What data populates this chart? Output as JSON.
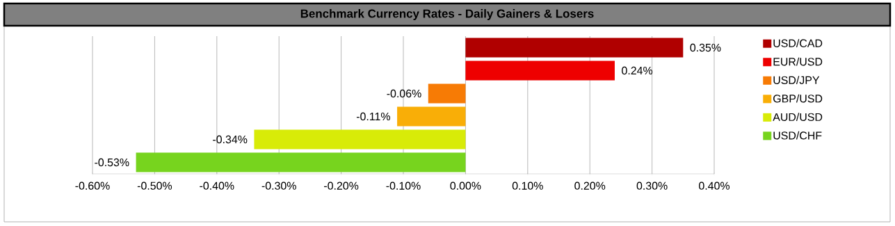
{
  "chart_data": {
    "type": "bar",
    "orientation": "horizontal",
    "title": "Benchmark Currency Rates - Daily Gainers & Losers",
    "categories": [
      null,
      null,
      null,
      null,
      null,
      null
    ],
    "series": [
      {
        "name": "USD/CAD",
        "color": "#b00000",
        "values": [
          0.35,
          null,
          null,
          null,
          null,
          null
        ],
        "value_labels": [
          "0.35%",
          null,
          null,
          null,
          null,
          null
        ]
      },
      {
        "name": "EUR/USD",
        "color": "#ee0000",
        "values": [
          null,
          0.24,
          null,
          null,
          null,
          null
        ],
        "value_labels": [
          null,
          "0.24%",
          null,
          null,
          null,
          null
        ]
      },
      {
        "name": "USD/JPY",
        "color": "#f77b05",
        "values": [
          null,
          null,
          -0.06,
          null,
          null,
          null
        ],
        "value_labels": [
          null,
          null,
          "-0.06%",
          null,
          null,
          null
        ]
      },
      {
        "name": "GBP/USD",
        "color": "#f9ae07",
        "values": [
          null,
          null,
          null,
          -0.11,
          null,
          null
        ],
        "value_labels": [
          null,
          null,
          null,
          "-0.11%",
          null,
          null
        ]
      },
      {
        "name": "AUD/USD",
        "color": "#d8eb08",
        "values": [
          null,
          null,
          null,
          null,
          -0.34,
          null
        ],
        "value_labels": [
          null,
          null,
          null,
          null,
          "-0.34%",
          null
        ]
      },
      {
        "name": "USD/CHF",
        "color": "#77d41e",
        "values": [
          null,
          null,
          null,
          null,
          null,
          -0.53
        ],
        "value_labels": [
          null,
          null,
          null,
          null,
          null,
          "-0.53%"
        ]
      }
    ],
    "xlim": [
      -0.6,
      0.4
    ],
    "xticks": [
      {
        "value": -0.6,
        "label": "-0.60%"
      },
      {
        "value": -0.5,
        "label": "-0.50%"
      },
      {
        "value": -0.4,
        "label": "-0.40%"
      },
      {
        "value": -0.3,
        "label": "-0.30%"
      },
      {
        "value": -0.2,
        "label": "-0.20%"
      },
      {
        "value": -0.1,
        "label": "-0.10%"
      },
      {
        "value": 0,
        "label": "0.00%"
      },
      {
        "value": 0.1,
        "label": "0.10%"
      },
      {
        "value": 0.2,
        "label": "0.20%"
      },
      {
        "value": 0.3,
        "label": "0.30%"
      },
      {
        "value": 0.4,
        "label": "0.40%"
      }
    ],
    "grid": "x",
    "legend": "right"
  }
}
